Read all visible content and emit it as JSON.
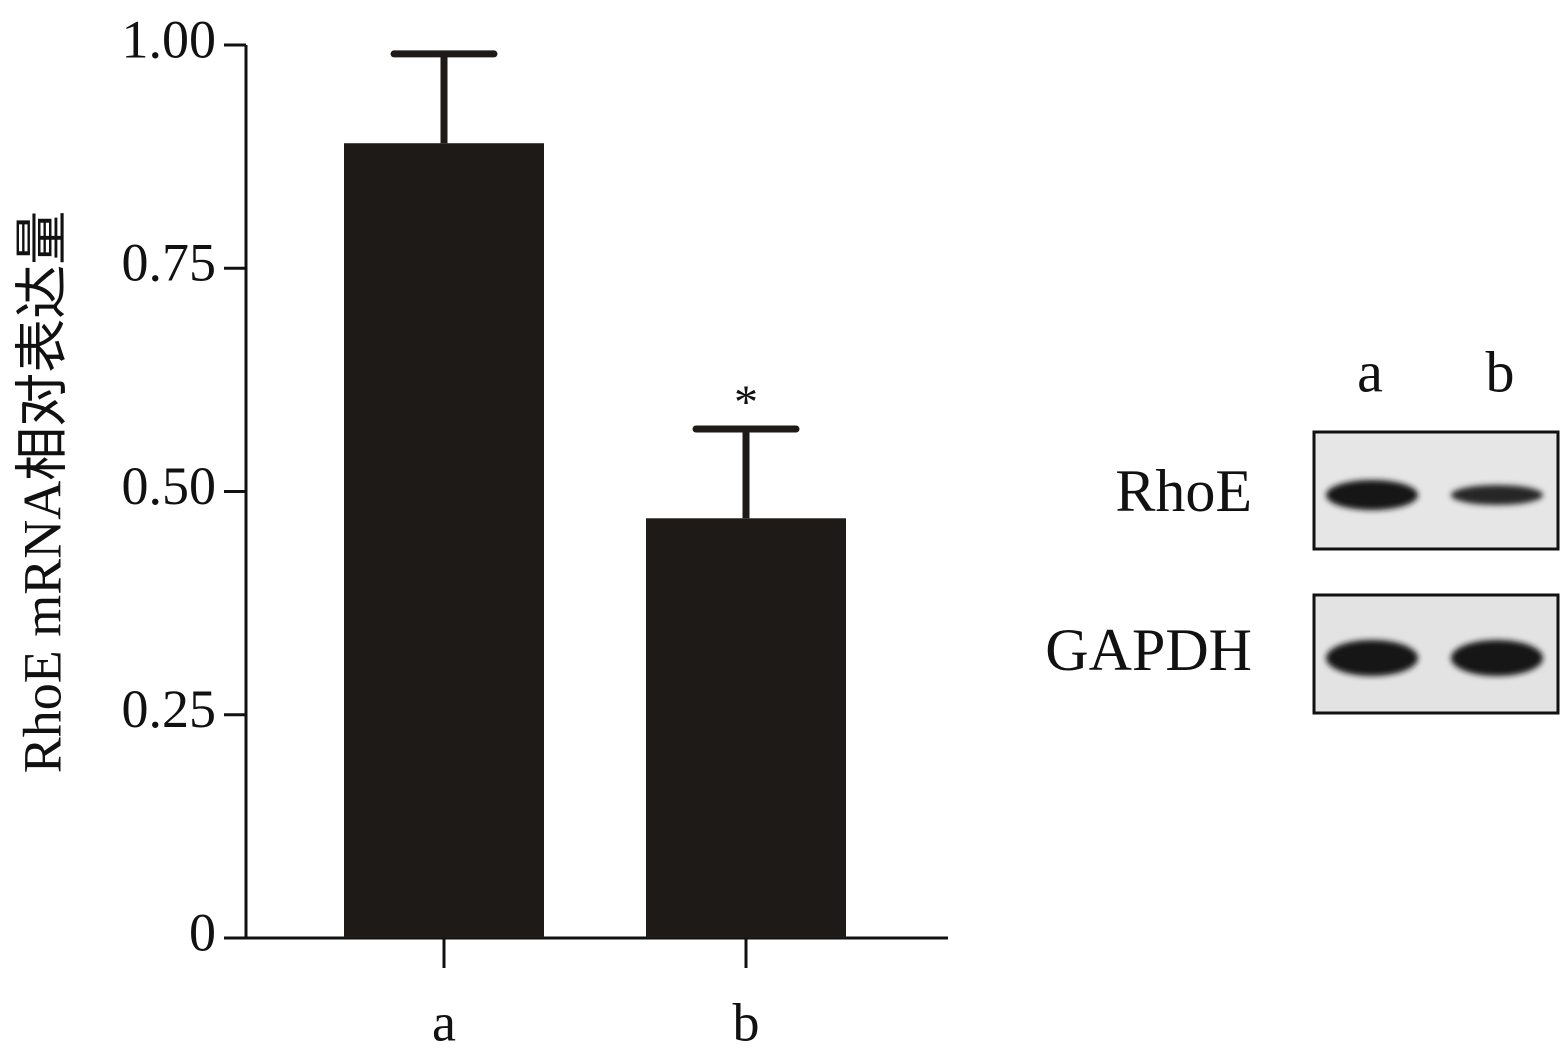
{
  "chart_data": {
    "type": "bar",
    "y_label": "RhoE mRNA相对表达量",
    "categories": [
      "a",
      "b"
    ],
    "values": [
      0.89,
      0.47
    ],
    "errors": [
      0.1,
      0.1
    ],
    "value_annotations": [
      null,
      "*"
    ],
    "color": "#1e1a17",
    "ylim": [
      0,
      1
    ],
    "yticks": [
      0,
      0.25,
      {
        "value": 0.5,
        "label": "0.50"
      },
      0.75,
      {
        "value": 1,
        "label": "1.00"
      }
    ]
  },
  "gel": {
    "lanes": [
      "a",
      "b"
    ],
    "rows": [
      "RhoE",
      "GAPDH"
    ]
  }
}
